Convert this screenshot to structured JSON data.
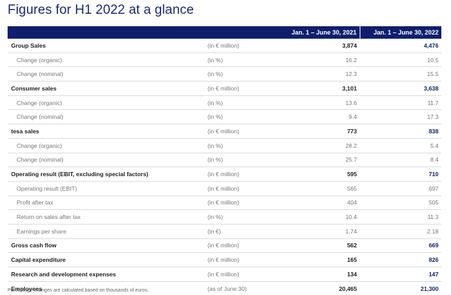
{
  "title": "Figures for H1 2022 at a glance",
  "header": {
    "col_label": "",
    "col_unit": "",
    "col_2021": "Jan. 1 – June 30, 2021",
    "col_2022": "Jan. 1 – June 30, 2022"
  },
  "rows": [
    {
      "label": "Group Sales",
      "unit": "(in € million)",
      "v2021": "3,874",
      "v2022": "4,476",
      "bold": true
    },
    {
      "label": "Change (organic)",
      "unit": "(in %)",
      "v2021": "16.2",
      "v2022": "10.5",
      "bold": false
    },
    {
      "label": "Change (nominal)",
      "unit": "(in %)",
      "v2021": "12.3",
      "v2022": "15.5",
      "bold": false
    },
    {
      "label": "Consumer sales",
      "unit": "(in € million)",
      "v2021": "3,101",
      "v2022": "3,638",
      "bold": true
    },
    {
      "label": "Change (organic)",
      "unit": "(in %)",
      "v2021": "13.6",
      "v2022": "11.7",
      "bold": false
    },
    {
      "label": "Change (nominal)",
      "unit": "(in %)",
      "v2021": "9.4",
      "v2022": "17.3",
      "bold": false
    },
    {
      "label": "tesa sales",
      "unit": "(in € million)",
      "v2021": "773",
      "v2022": "838",
      "bold": true
    },
    {
      "label": "Change (organic)",
      "unit": "(in %)",
      "v2021": "28.2",
      "v2022": "5.4",
      "bold": false
    },
    {
      "label": "Change (nominal)",
      "unit": "(in %)",
      "v2021": "25.7",
      "v2022": "8.4",
      "bold": false
    },
    {
      "label": "Operating result (EBIT, excluding special factors)",
      "unit": "(in € million)",
      "v2021": "595",
      "v2022": "710",
      "bold": true
    },
    {
      "label": "Operating result (EBIT)",
      "unit": "(in € million)",
      "v2021": "565",
      "v2022": "697",
      "bold": false
    },
    {
      "label": "Profit after tax",
      "unit": "(in € million)",
      "v2021": "404",
      "v2022": "505",
      "bold": false
    },
    {
      "label": "Return on sales after tax",
      "unit": "(in %)",
      "v2021": "10.4",
      "v2022": "11.3",
      "bold": false
    },
    {
      "label": "Earnings per share",
      "unit": "(in €)",
      "v2021": "1.74",
      "v2022": "2.18",
      "bold": false
    },
    {
      "label": "Gross cash flow",
      "unit": "(in € million)",
      "v2021": "562",
      "v2022": "669",
      "bold": true
    },
    {
      "label": "Capital expenditure",
      "unit": "(in € million)",
      "v2021": "165",
      "v2022": "826",
      "bold": true
    },
    {
      "label": "Research and development expenses",
      "unit": "(in € million)",
      "v2021": "134",
      "v2022": "147",
      "bold": true
    },
    {
      "label": "Employees",
      "unit": "(as of June 30)",
      "v2021": "20,465",
      "v2022": "21,300",
      "bold": true
    }
  ],
  "footnote": "Percentage changes are calculated based on thousands of euros.",
  "colors": {
    "header_bg": "#0f1f6e",
    "title": "#1b2a6b",
    "highlight_value": "#0f1f6e"
  }
}
